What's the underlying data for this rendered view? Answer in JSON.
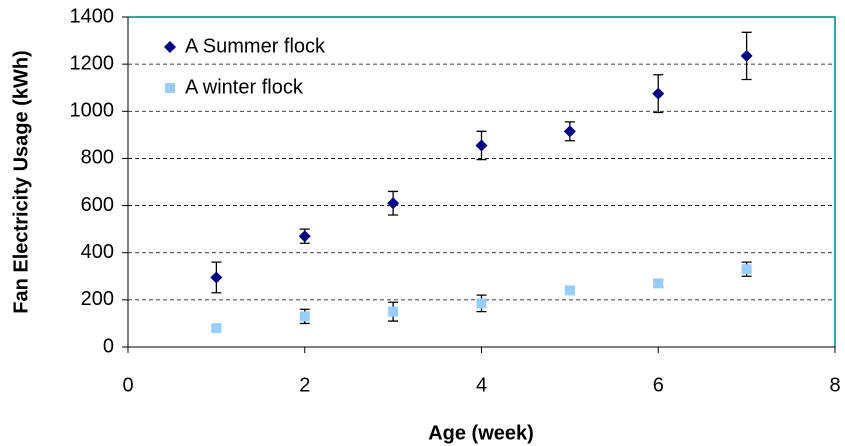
{
  "chart_data": {
    "type": "scatter",
    "x_label": "Age (week)",
    "y_label": "Fan Electricity Usage (kWh)",
    "xlim": [
      0,
      8
    ],
    "xticks": [
      0,
      2,
      4,
      6,
      8
    ],
    "ylim": [
      0,
      1400
    ],
    "yticks": [
      0,
      200,
      400,
      600,
      800,
      1000,
      1200,
      1400
    ],
    "grid": true,
    "legend": "upper left",
    "series": [
      {
        "name": "A Summer flock",
        "color": "#000080",
        "marker": "diamond",
        "x": [
          1,
          2,
          3,
          4,
          5,
          6,
          7
        ],
        "values": [
          295,
          470,
          610,
          855,
          915,
          1075,
          1235
        ],
        "errors": [
          65,
          30,
          50,
          60,
          40,
          80,
          100
        ]
      },
      {
        "name": "A winter flock",
        "color": "#99ccff",
        "marker": "square",
        "x": [
          1,
          2,
          3,
          4,
          5,
          6,
          7
        ],
        "values": [
          80,
          130,
          150,
          185,
          240,
          270,
          330
        ],
        "errors": [
          10,
          30,
          40,
          35,
          10,
          15,
          30
        ]
      }
    ]
  }
}
